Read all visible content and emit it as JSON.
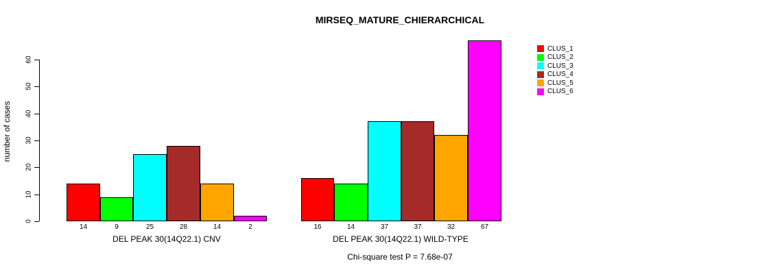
{
  "title": "MIRSEQ_MATURE_CHIERARCHICAL",
  "chart_data": {
    "type": "bar",
    "title": "MIRSEQ_MATURE_CHIERARCHICAL",
    "ylabel": "number of cases",
    "xlabel": "",
    "ylim": [
      0,
      60
    ],
    "yticks": [
      0,
      10,
      20,
      30,
      40,
      50,
      60
    ],
    "grid": false,
    "legend_position": "top-right",
    "legend": [
      "CLUS_1",
      "CLUS_2",
      "CLUS_3",
      "CLUS_4",
      "CLUS_5",
      "CLUS_6"
    ],
    "series_colors": [
      "#FF0000",
      "#00FF00",
      "#00FFFF",
      "#A52A2A",
      "#FFA500",
      "#FF00FF"
    ],
    "groups": [
      {
        "label": "DEL PEAK 30(14Q22.1) CNV",
        "values": [
          14,
          9,
          25,
          28,
          14,
          2
        ]
      },
      {
        "label": "DEL PEAK 30(14Q22.1) WILD-TYPE",
        "values": [
          16,
          14,
          37,
          37,
          32,
          67
        ]
      }
    ],
    "bar_value_labels_shown": true,
    "annotation": "Chi-square test P = 7.68e-07"
  }
}
